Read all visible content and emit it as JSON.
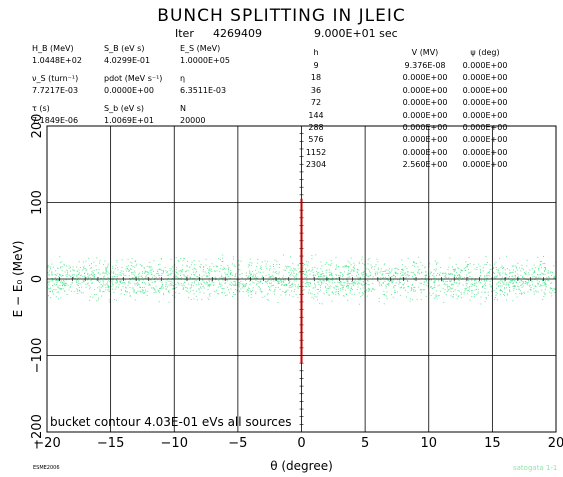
{
  "title": "BUNCH SPLITTING IN JLEIC",
  "iter_label": "Iter",
  "iter_value": "4269409",
  "time_value": "9.000E+01 sec",
  "params": [
    {
      "label": "H_B (MeV)",
      "value": "1.0448E+02"
    },
    {
      "label": "S_B (eV s)",
      "value": "4.0299E-01"
    },
    {
      "label": "E_S (MeV)",
      "value": "1.0000E+05"
    },
    {
      "label": "ν_S (turn⁻¹)",
      "value": "7.7217E-03"
    },
    {
      "label": "pdot (MeV s⁻¹)",
      "value": "0.0000E+00"
    },
    {
      "label": "η",
      "value": "6.3511E-03"
    },
    {
      "label": "τ (s)",
      "value": "7.1849E-06"
    },
    {
      "label": "S_b (eV s)",
      "value": "1.0069E+01"
    },
    {
      "label": "N",
      "value": "20000"
    }
  ],
  "harmonics": {
    "headers": [
      "h",
      "V (MV)",
      "ψ (deg)"
    ],
    "rows": [
      [
        "9",
        "9.376E-08",
        "0.000E+00"
      ],
      [
        "18",
        "0.000E+00",
        "0.000E+00"
      ],
      [
        "36",
        "0.000E+00",
        "0.000E+00"
      ],
      [
        "72",
        "0.000E+00",
        "0.000E+00"
      ],
      [
        "144",
        "0.000E+00",
        "0.000E+00"
      ],
      [
        "288",
        "0.000E+00",
        "0.000E+00"
      ],
      [
        "576",
        "0.000E+00",
        "0.000E+00"
      ],
      [
        "1152",
        "0.000E+00",
        "0.000E+00"
      ],
      [
        "2304",
        "2.560E+00",
        "0.000E+00"
      ]
    ]
  },
  "bucket_note": "bucket contour 4.03E-01 eVs all sources",
  "footer_left": "ESME2006",
  "footer_right": "satogata 1-1",
  "chart_data": {
    "type": "scatter",
    "xlabel": "θ (degree)",
    "ylabel": "E − E₀ (MeV)",
    "xlim": [
      -20,
      20
    ],
    "ylim": [
      -200,
      200
    ],
    "xticks": [
      -20,
      -15,
      -10,
      -5,
      0,
      5,
      10,
      15,
      20
    ],
    "yticks": [
      -200,
      -100,
      0,
      100,
      200
    ],
    "grid": true,
    "particle_band": {
      "x_range": [
        -20,
        20
      ],
      "y_range": [
        -37,
        37
      ],
      "color": "#33e07a"
    },
    "rf_line": {
      "x": 0,
      "y_range": [
        -110,
        105
      ],
      "color": "#cc0000"
    }
  }
}
